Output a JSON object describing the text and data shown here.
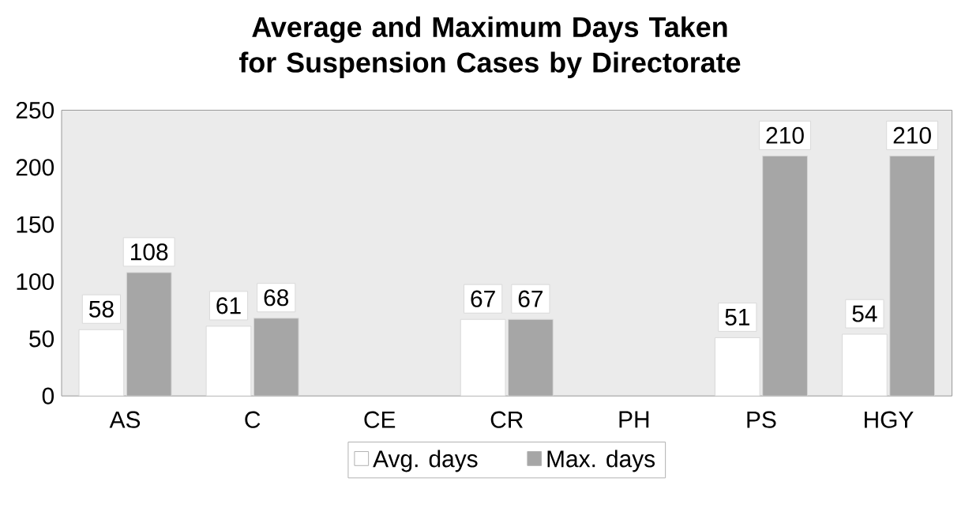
{
  "chart_data": {
    "type": "bar",
    "title": "Average and Maximum Days Taken for Suspension Cases by Directorate",
    "categories": [
      "AS",
      "C",
      "CE",
      "CR",
      "PH",
      "PS",
      "HGY"
    ],
    "series": [
      {
        "name": "Avg. days",
        "color": "#ffffff",
        "values": [
          58,
          61,
          null,
          67,
          null,
          51,
          54
        ]
      },
      {
        "name": "Max. days",
        "color": "#a6a6a6",
        "values": [
          108,
          68,
          null,
          67,
          null,
          210,
          210
        ]
      }
    ],
    "ylim": [
      0,
      250
    ],
    "yticks": [
      0,
      50,
      100,
      150,
      200,
      250
    ],
    "grid": false,
    "legend": "bottom",
    "data_labels": true
  }
}
